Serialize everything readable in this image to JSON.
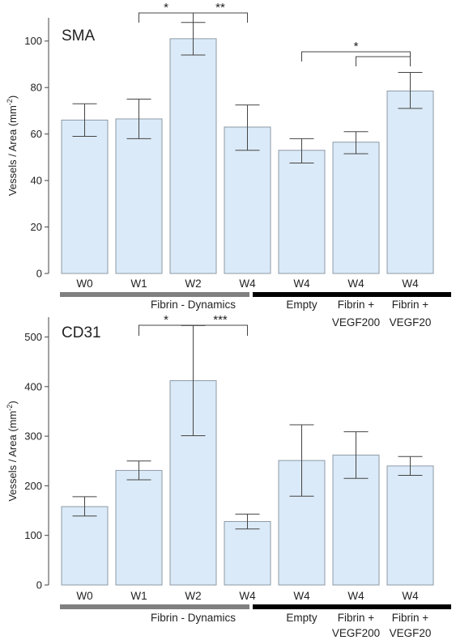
{
  "chart_data": [
    {
      "type": "bar",
      "title": "SMA",
      "ylabel": "Vessels / Area (mm",
      "ylabel_sup": "-2",
      "ylabel_close": ")",
      "ylim": [
        0,
        110
      ],
      "yticks": [
        "0",
        "20",
        "40",
        "60",
        "80",
        "100"
      ],
      "categories": [
        "W0",
        "W1",
        "W2",
        "W4",
        "W4",
        "W4",
        "W4"
      ],
      "values": [
        66,
        66.5,
        101,
        63,
        53,
        56.5,
        78.5
      ],
      "error_high": [
        73,
        75,
        108,
        72.5,
        58,
        61,
        86.5
      ],
      "error_low": [
        59,
        58,
        94,
        53,
        47.5,
        51.5,
        71
      ],
      "groups": [
        {
          "label": "Fibrin - Dynamics",
          "color": "#808080"
        },
        {
          "label": "",
          "color": "#000000"
        }
      ],
      "sublabels": [
        "",
        "",
        "",
        "",
        "Empty",
        "Fibrin +\nVEGF200",
        "Fibrin +\nVEGF20"
      ],
      "significance": [
        {
          "from": 1,
          "to": 2,
          "label": "*"
        },
        {
          "from": 2,
          "to": 3,
          "label": "**"
        },
        {
          "from": 4,
          "to": 6,
          "label": "*"
        },
        {
          "from": 5,
          "to": 6,
          "label": ""
        }
      ]
    },
    {
      "type": "bar",
      "title": "CD31",
      "ylabel": "Vessels / Area (mm",
      "ylabel_sup": "-2",
      "ylabel_close": ")",
      "ylim": [
        0,
        540
      ],
      "yticks": [
        "0",
        "100",
        "200",
        "300",
        "400",
        "500"
      ],
      "categories": [
        "W0",
        "W1",
        "W2",
        "W4",
        "W4",
        "W4",
        "W4"
      ],
      "values": [
        158,
        231,
        412,
        128,
        251,
        262,
        240
      ],
      "error_high": [
        178,
        250,
        523,
        143,
        323,
        309,
        259
      ],
      "error_low": [
        139,
        212,
        301,
        113,
        179,
        215,
        221
      ],
      "groups": [
        {
          "label": "Fibrin - Dynamics",
          "color": "#808080"
        },
        {
          "label": "",
          "color": "#000000"
        }
      ],
      "sublabels": [
        "",
        "",
        "",
        "",
        "Empty",
        "Fibrin +\nVEGF200",
        "Fibrin +\nVEGF20"
      ],
      "significance": [
        {
          "from": 1,
          "to": 2,
          "label": "*"
        },
        {
          "from": 2,
          "to": 3,
          "label": "***"
        }
      ]
    }
  ]
}
